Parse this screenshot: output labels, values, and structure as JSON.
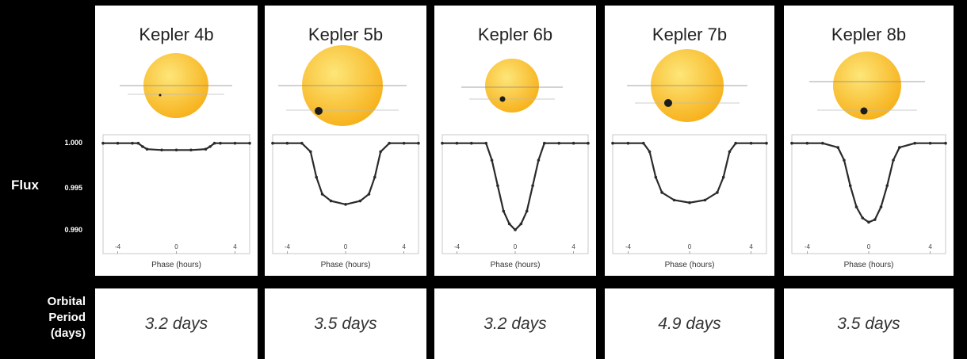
{
  "y_axis": {
    "label": "Flux",
    "ticks": [
      "1.000",
      "0.995",
      "0.990"
    ]
  },
  "x_axis": {
    "label": "Phase (hours)",
    "ticks": [
      "-4",
      "0",
      "4"
    ]
  },
  "orbital_period_label": [
    "Orbital",
    "Period",
    "(days)"
  ],
  "colors": {
    "star": "#f7b31f",
    "star_highlight": "#fde679",
    "planet": "#1c1c1c",
    "data": "#2a2a2a",
    "background": "#000000",
    "panel": "#ffffff"
  },
  "chart_data": [
    {
      "type": "scatter",
      "title": "Kepler 4b",
      "xlabel": "Phase (hours)",
      "ylabel": "Flux",
      "xlim": [
        -5,
        5
      ],
      "ylim": [
        0.987,
        1.001
      ],
      "x": [
        -5,
        -4,
        -3,
        -2.6,
        -2.3,
        -2,
        -1,
        0,
        1,
        2,
        2.3,
        2.6,
        3,
        4,
        5
      ],
      "y": [
        1.0,
        1.0,
        1.0,
        1.0,
        0.9996,
        0.9993,
        0.9992,
        0.9992,
        0.9992,
        0.9993,
        0.9996,
        1.0,
        1.0,
        1.0,
        1.0
      ],
      "orbital_period": "3.2 days"
    },
    {
      "type": "scatter",
      "title": "Kepler 5b",
      "xlabel": "Phase (hours)",
      "ylabel": "Flux",
      "xlim": [
        -5,
        5
      ],
      "ylim": [
        0.987,
        1.001
      ],
      "x": [
        -5,
        -4,
        -3,
        -2.4,
        -2,
        -1.6,
        -1,
        0,
        1,
        1.6,
        2,
        2.4,
        3,
        4,
        5
      ],
      "y": [
        1.0,
        1.0,
        1.0,
        0.999,
        0.996,
        0.994,
        0.9932,
        0.9928,
        0.9932,
        0.994,
        0.996,
        0.999,
        1.0,
        1.0,
        1.0
      ],
      "orbital_period": "3.5 days"
    },
    {
      "type": "scatter",
      "title": "Kepler 6b",
      "xlabel": "Phase (hours)",
      "ylabel": "Flux",
      "xlim": [
        -5,
        5
      ],
      "ylim": [
        0.987,
        1.001
      ],
      "x": [
        -5,
        -4,
        -3,
        -2,
        -1.6,
        -1.2,
        -0.8,
        -0.4,
        0,
        0.4,
        0.8,
        1.2,
        1.6,
        2,
        3,
        4,
        5
      ],
      "y": [
        1.0,
        1.0,
        1.0,
        1.0,
        0.998,
        0.995,
        0.992,
        0.9905,
        0.9898,
        0.9905,
        0.992,
        0.995,
        0.998,
        1.0,
        1.0,
        1.0,
        1.0
      ],
      "orbital_period": "3.2 days"
    },
    {
      "type": "scatter",
      "title": "Kepler 7b",
      "xlabel": "Phase (hours)",
      "ylabel": "Flux",
      "xlim": [
        -5,
        5
      ],
      "ylim": [
        0.987,
        1.001
      ],
      "x": [
        -5,
        -4,
        -3,
        -2.6,
        -2.2,
        -1.8,
        -1,
        0,
        1,
        1.8,
        2.2,
        2.6,
        3,
        4,
        5
      ],
      "y": [
        1.0,
        1.0,
        1.0,
        0.999,
        0.996,
        0.9942,
        0.9933,
        0.993,
        0.9933,
        0.9942,
        0.996,
        0.999,
        1.0,
        1.0,
        1.0
      ],
      "orbital_period": "4.9 days"
    },
    {
      "type": "scatter",
      "title": "Kepler 8b",
      "xlabel": "Phase (hours)",
      "ylabel": "Flux",
      "xlim": [
        -5,
        5
      ],
      "ylim": [
        0.987,
        1.001
      ],
      "x": [
        -5,
        -4,
        -3,
        -2,
        -1.6,
        -1.2,
        -0.8,
        -0.4,
        0,
        0.4,
        0.8,
        1.2,
        1.6,
        2,
        3,
        4,
        5
      ],
      "y": [
        1.0,
        1.0,
        1.0,
        0.9995,
        0.998,
        0.995,
        0.9925,
        0.9912,
        0.9907,
        0.991,
        0.9925,
        0.995,
        0.998,
        0.9995,
        1.0,
        1.0,
        1.0
      ],
      "orbital_period": "3.5 days"
    }
  ]
}
